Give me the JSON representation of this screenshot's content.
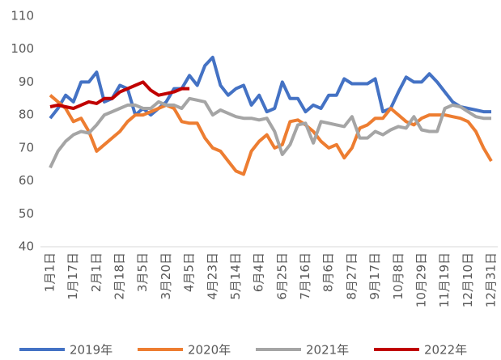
{
  "chart_data": {
    "type": "line",
    "categories": [
      "1月1日",
      null,
      null,
      "1月17日",
      null,
      null,
      "2月1日",
      null,
      null,
      "2月18日",
      null,
      null,
      "3月5日",
      null,
      null,
      "3月20日",
      null,
      null,
      "4月5日",
      null,
      null,
      "4月23日",
      null,
      null,
      "5月14日",
      null,
      null,
      "6月4日",
      null,
      null,
      "6月25日",
      null,
      null,
      "7月16日",
      null,
      null,
      "8月6日",
      null,
      null,
      "8月27日",
      null,
      null,
      "9月17日",
      null,
      null,
      "10月8日",
      null,
      null,
      "10月29日",
      null,
      null,
      "11月19日",
      null,
      null,
      "12月10日",
      null,
      null,
      "12月31日"
    ],
    "series": [
      {
        "name": "2019年",
        "color": "#4472c4",
        "values": [
          79,
          82,
          86,
          84,
          90,
          90,
          93,
          84,
          85,
          89,
          88,
          80,
          82,
          80,
          82,
          84,
          88,
          88,
          92,
          89,
          95,
          97.5,
          89,
          86,
          88,
          89,
          83,
          86,
          81,
          82,
          90,
          85,
          85,
          81,
          83,
          82,
          86,
          86,
          91,
          89.5,
          89.5,
          89.5,
          91,
          81,
          82,
          87,
          91.5,
          90,
          90,
          92.5,
          90,
          87,
          84,
          82.5,
          82,
          81.5,
          81,
          81
        ]
      },
      {
        "name": "2020年",
        "color": "#ed7d31",
        "values": [
          86,
          84,
          82,
          78,
          79,
          75,
          69,
          71,
          73,
          75,
          78,
          80,
          80,
          81,
          82,
          83,
          82,
          78,
          77.5,
          77.5,
          73,
          70,
          69,
          66,
          63,
          62,
          69,
          72,
          74,
          70,
          71,
          78,
          78.5,
          77,
          75,
          72,
          70,
          71,
          67,
          70,
          76,
          77,
          79,
          79,
          82,
          80,
          78,
          77,
          79,
          80,
          80,
          80,
          79.5,
          79,
          78,
          75,
          70,
          66
        ]
      },
      {
        "name": "2021年",
        "color": "#a5a5a5",
        "values": [
          64,
          69,
          72,
          74,
          75,
          74.5,
          77,
          80,
          81,
          82,
          83,
          83,
          82,
          82,
          84,
          83,
          83,
          82,
          85,
          84.5,
          84,
          80,
          81.5,
          80.5,
          79.5,
          79,
          79,
          78.5,
          79,
          75,
          68,
          71,
          77,
          77.5,
          71.5,
          78,
          77.5,
          77,
          76.5,
          79.5,
          73,
          73,
          75,
          74,
          75.5,
          76.5,
          76,
          79.5,
          75.5,
          75,
          75,
          82,
          83,
          82.5,
          81,
          79.5,
          79,
          79
        ]
      },
      {
        "name": "2022年",
        "color": "#c00000",
        "values": [
          82.5,
          83,
          82.5,
          82,
          83,
          84,
          83.5,
          85,
          85,
          87,
          88,
          89,
          90,
          87.5,
          86,
          86.5,
          87,
          88,
          88,
          null,
          null,
          null,
          null,
          null,
          null,
          null,
          null,
          null,
          null,
          null,
          null,
          null,
          null,
          null,
          null,
          null,
          null,
          null,
          null,
          null,
          null,
          null,
          null,
          null,
          null,
          null,
          null,
          null,
          null,
          null,
          null,
          null,
          null,
          null,
          null,
          null,
          null,
          null
        ]
      }
    ],
    "ylim": [
      40,
      110
    ],
    "yticks": [
      40,
      50,
      60,
      70,
      80,
      90,
      100,
      110
    ],
    "grid": false
  }
}
